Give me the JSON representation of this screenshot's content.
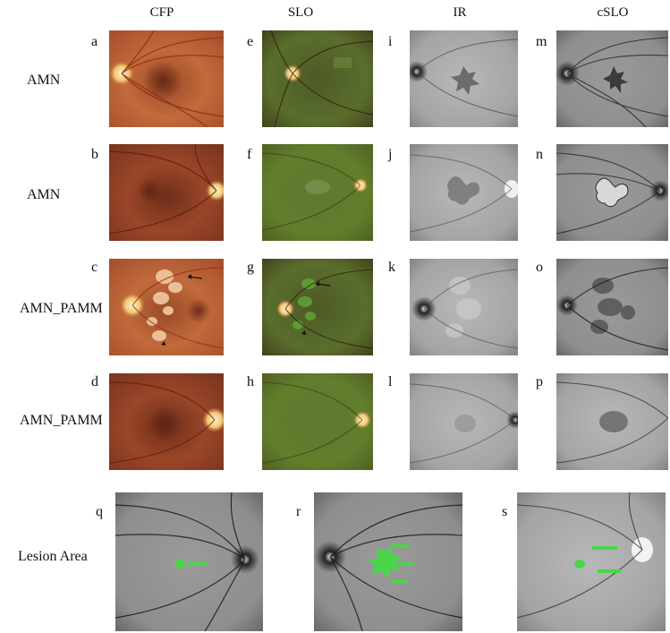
{
  "columns": [
    "CFP",
    "SLO",
    "IR",
    "cSLO"
  ],
  "rows": [
    "AMN",
    "AMN",
    "AMN_PAMM",
    "AMN_PAMM"
  ],
  "bottom_row_label": "Lesion Area",
  "panel_letters": {
    "col1": [
      "a",
      "b",
      "c",
      "d"
    ],
    "col2": [
      "e",
      "f",
      "g",
      "h"
    ],
    "col3": [
      "i",
      "j",
      "k",
      "l"
    ],
    "col4": [
      "m",
      "n",
      "o",
      "p"
    ],
    "bottom": [
      "q",
      "r",
      "s"
    ]
  },
  "colors": {
    "cfp_bg": "#c0683a",
    "slo_bg": "#4a6a2a",
    "gray_bg": "#8a8a8a",
    "lesion_green": "#49d64a"
  }
}
